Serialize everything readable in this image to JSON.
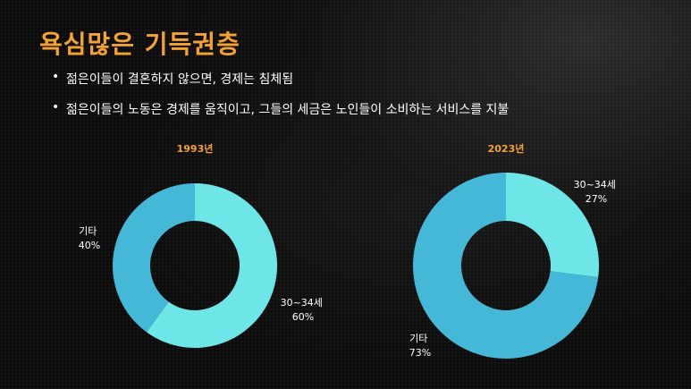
{
  "slide": {
    "title": "욕심많은 기득권층",
    "bullets": [
      "젊은이들이 결혼하지 않으면, 경제는 침체됨",
      "젊은이들의 노동은 경제를 움직이고, 그들의 세금은 노인들이 소비하는 서비스를 지불"
    ]
  },
  "colors": {
    "title": "#f5a234",
    "slice_30_34": "#6ee6e8",
    "slice_other": "#45b8d8"
  },
  "chart_data": [
    {
      "type": "pie",
      "title": "1993년",
      "slices": [
        {
          "label": "30~34세",
          "value": 60,
          "value_label": "60%"
        },
        {
          "label": "기타",
          "value": 40,
          "value_label": "40%"
        }
      ]
    },
    {
      "type": "pie",
      "title": "2023년",
      "slices": [
        {
          "label": "30~34세",
          "value": 27,
          "value_label": "27%"
        },
        {
          "label": "기타",
          "value": 73,
          "value_label": "73%"
        }
      ]
    }
  ]
}
